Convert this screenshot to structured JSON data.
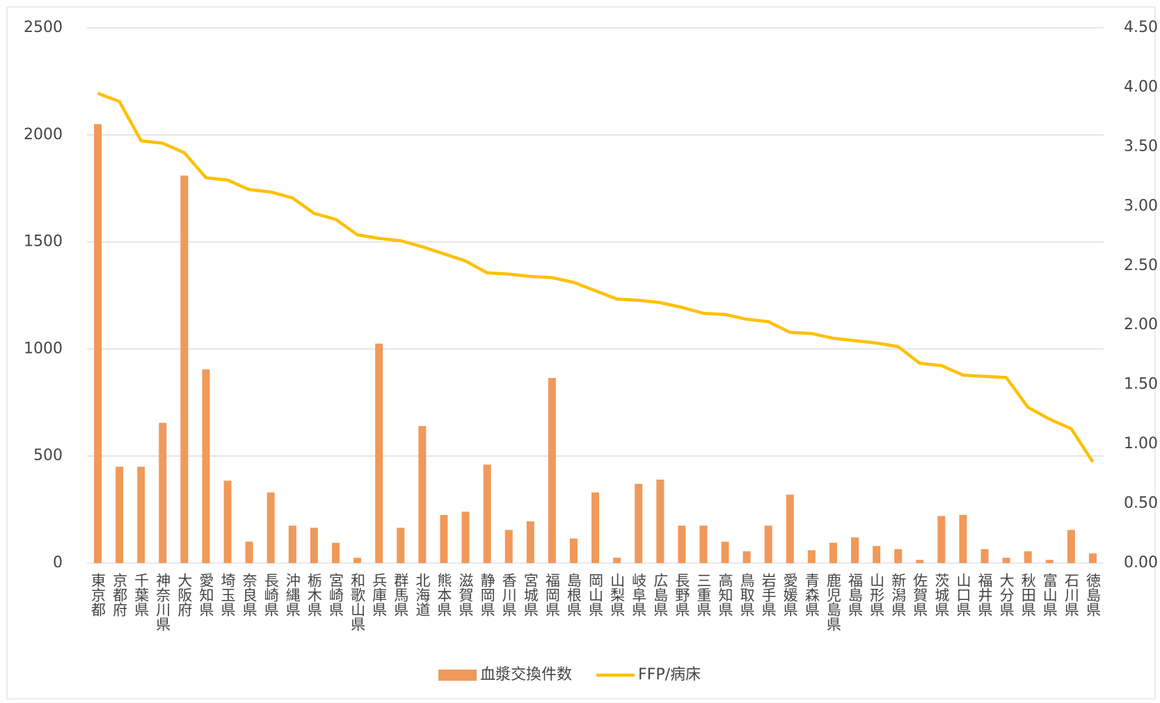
{
  "chart_data": {
    "type": "bar-line",
    "categories": [
      "東京都",
      "京都府",
      "千葉県",
      "神奈川県",
      "大阪府",
      "愛知県",
      "埼玉県",
      "奈良県",
      "長崎県",
      "沖縄県",
      "栃木県",
      "宮崎県",
      "和歌山県",
      "兵庫県",
      "群馬県",
      "北海道",
      "熊本県",
      "滋賀県",
      "静岡県",
      "香川県",
      "宮城県",
      "福岡県",
      "島根県",
      "岡山県",
      "山梨県",
      "岐阜県",
      "広島県",
      "長野県",
      "三重県",
      "高知県",
      "鳥取県",
      "岩手県",
      "愛媛県",
      "青森県",
      "鹿児島県",
      "福島県",
      "山形県",
      "新潟県",
      "佐賀県",
      "茨城県",
      "山口県",
      "福井県",
      "大分県",
      "秋田県",
      "富山県",
      "石川県",
      "徳島県"
    ],
    "series": [
      {
        "name": "血漿交換件数",
        "type": "bar",
        "color": "#f0995a",
        "values": [
          2050,
          450,
          450,
          655,
          1810,
          905,
          385,
          100,
          330,
          175,
          165,
          95,
          25,
          1025,
          165,
          640,
          225,
          240,
          460,
          155,
          195,
          865,
          115,
          330,
          25,
          370,
          390,
          175,
          175,
          100,
          55,
          175,
          320,
          60,
          95,
          120,
          80,
          65,
          15,
          220,
          225,
          65,
          25,
          55,
          15,
          155,
          45
        ]
      },
      {
        "name": "FFP/病床",
        "type": "line",
        "axis": "y2",
        "color": "#ffc000",
        "values": [
          3.95,
          3.88,
          3.55,
          3.53,
          3.45,
          3.24,
          3.22,
          3.14,
          3.12,
          3.07,
          2.94,
          2.89,
          2.76,
          2.73,
          2.71,
          2.66,
          2.6,
          2.54,
          2.44,
          2.43,
          2.41,
          2.4,
          2.36,
          2.29,
          2.22,
          2.21,
          2.19,
          2.15,
          2.1,
          2.09,
          2.05,
          2.03,
          1.94,
          1.93,
          1.89,
          1.87,
          1.85,
          1.82,
          1.68,
          1.66,
          1.58,
          1.57,
          1.56,
          1.31,
          1.21,
          1.13,
          0.85
        ]
      }
    ],
    "ylim": [
      0,
      2500
    ],
    "yticks": [
      0,
      500,
      1000,
      1500,
      2000,
      2500
    ],
    "y2lim": [
      0,
      4.5
    ],
    "y2ticks": [
      {
        "value": 0,
        "label": "0.00"
      },
      {
        "value": 0.5,
        "label": "0.50"
      },
      {
        "value": 1,
        "label": "1.00"
      },
      {
        "value": 1.5,
        "label": "1.50"
      },
      {
        "value": 2,
        "label": "2.00"
      },
      {
        "value": 2.5,
        "label": "2.50"
      },
      {
        "value": 3,
        "label": "3.00"
      },
      {
        "value": 3.5,
        "label": "3.50"
      },
      {
        "value": 4,
        "label": "4.00"
      },
      {
        "value": 4.5,
        "label": "4.50"
      }
    ],
    "grid": true,
    "legend": "bottom"
  }
}
